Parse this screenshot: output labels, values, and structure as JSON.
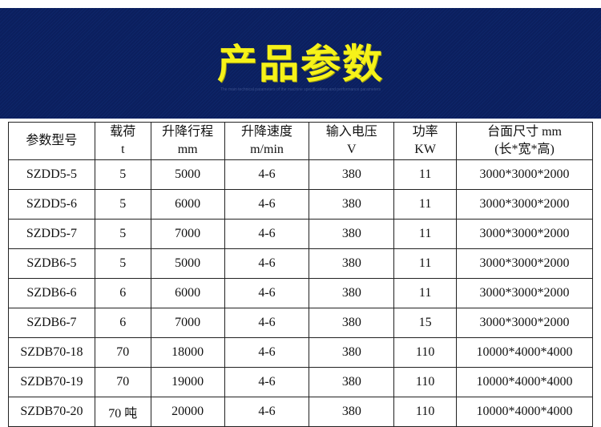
{
  "banner": {
    "title": "产品参数",
    "subtitle": "The main technical parameters of the machine specifications and performance parameters"
  },
  "colors": {
    "banner_bg": "#0b1f5e",
    "title": "#f6f219"
  },
  "table": {
    "headers": [
      [
        "参数型号",
        ""
      ],
      [
        "载荷",
        "t"
      ],
      [
        "升降行程",
        "mm"
      ],
      [
        "升降速度",
        "m/min"
      ],
      [
        "输入电压",
        "V"
      ],
      [
        "功率",
        "KW"
      ],
      [
        "台面尺寸 mm",
        "(长*宽*高)"
      ]
    ],
    "rows": [
      [
        "SZDD5-5",
        "5",
        "5000",
        "4-6",
        "380",
        "11",
        "3000*3000*2000"
      ],
      [
        "SZDD5-6",
        "5",
        "6000",
        "4-6",
        "380",
        "11",
        "3000*3000*2000"
      ],
      [
        "SZDD5-7",
        "5",
        "7000",
        "4-6",
        "380",
        "11",
        "3000*3000*2000"
      ],
      [
        "SZDB6-5",
        "5",
        "5000",
        "4-6",
        "380",
        "11",
        "3000*3000*2000"
      ],
      [
        "SZDB6-6",
        "6",
        "6000",
        "4-6",
        "380",
        "11",
        "3000*3000*2000"
      ],
      [
        "SZDB6-7",
        "6",
        "7000",
        "4-6",
        "380",
        "15",
        "3000*3000*2000"
      ],
      [
        "SZDB70-18",
        "70",
        "18000",
        "4-6",
        "380",
        "110",
        "10000*4000*4000"
      ],
      [
        "SZDB70-19",
        "70",
        "19000",
        "4-6",
        "380",
        "110",
        "10000*4000*4000"
      ],
      [
        "SZDB70-20",
        "70 吨",
        "20000",
        "4-6",
        "380",
        "110",
        "10000*4000*4000"
      ]
    ]
  }
}
